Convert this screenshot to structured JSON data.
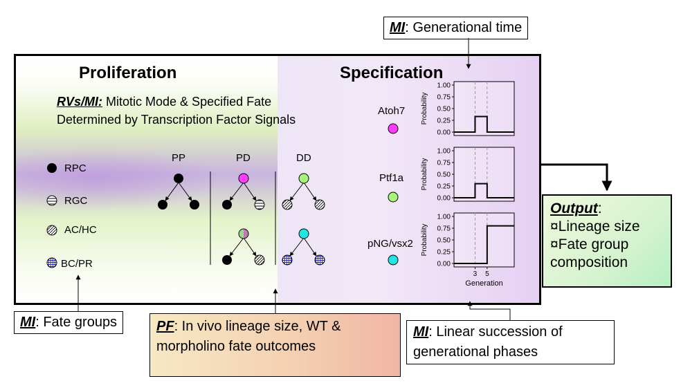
{
  "headings": {
    "proliferation": "Proliferation",
    "specification": "Specification"
  },
  "rv_mi": {
    "prefix": "RVs/MI:",
    "line1": " Mitotic Mode & Specified Fate",
    "line2": "Determined by Transcription Factor Signals"
  },
  "legend": [
    {
      "label": "RPC"
    },
    {
      "label": "RGC"
    },
    {
      "label": "AC/HC"
    },
    {
      "label": "BC/PR"
    }
  ],
  "modes": {
    "pp": "PP",
    "pd": "PD",
    "dd": "DD"
  },
  "genes": [
    {
      "label": "Atoh7",
      "color": "#ff3dff"
    },
    {
      "label": "Ptf1a",
      "color": "#a6f57a"
    },
    {
      "label": "pNG/vsx2",
      "color": "#22e6e6"
    }
  ],
  "mi_top": {
    "prefix": "MI",
    "text": ": Generational time"
  },
  "mi_fate": {
    "prefix": "MI",
    "text": ": Fate groups"
  },
  "pf": {
    "prefix": "PF",
    "line1": ": In vivo lineage size, WT &",
    "line2": "morpholino fate outcomes"
  },
  "mi_linear": {
    "prefix": "MI",
    "line1": ": Linear succession of",
    "line2": "generational phases"
  },
  "output": {
    "title": "Output",
    "colon": ":",
    "items": [
      "¤Lineage size",
      "¤Fate group",
      "composition"
    ]
  },
  "chart_data": [
    {
      "type": "line",
      "ylabel": "Probability",
      "xlabel": "",
      "ylim": [
        0,
        1.0
      ],
      "yticks": [
        "0.00",
        "0.25",
        "0.50",
        "0.75",
        "1.00"
      ],
      "xlim": [
        -0.5,
        9.5
      ],
      "dashed_x": [
        3,
        5
      ],
      "series": [
        {
          "x": [
            -0.5,
            3,
            3,
            5,
            5,
            9.5
          ],
          "y": [
            0,
            0,
            0.33,
            0.33,
            0,
            0
          ]
        }
      ]
    },
    {
      "type": "line",
      "ylabel": "Probability",
      "xlabel": "",
      "ylim": [
        0,
        1.0
      ],
      "yticks": [
        "0.00",
        "0.25",
        "0.50",
        "0.75",
        "1.00"
      ],
      "xlim": [
        -0.5,
        9.5
      ],
      "dashed_x": [
        3,
        5
      ],
      "series": [
        {
          "x": [
            -0.5,
            3,
            3,
            5,
            5,
            9.5
          ],
          "y": [
            0,
            0,
            0.3,
            0.3,
            0,
            0
          ]
        }
      ]
    },
    {
      "type": "line",
      "ylabel": "Probability",
      "xlabel": "Generation",
      "ylim": [
        0,
        1.0
      ],
      "yticks": [
        "0.00",
        "0.25",
        "0.50",
        "0.75",
        "1.00"
      ],
      "xticks": [
        "3",
        "5"
      ],
      "xlim": [
        -0.5,
        9.5
      ],
      "dashed_x": [
        3,
        5
      ],
      "series": [
        {
          "x": [
            -0.5,
            5,
            5,
            9.5
          ],
          "y": [
            0,
            0,
            0.8,
            0.8
          ]
        }
      ]
    }
  ]
}
